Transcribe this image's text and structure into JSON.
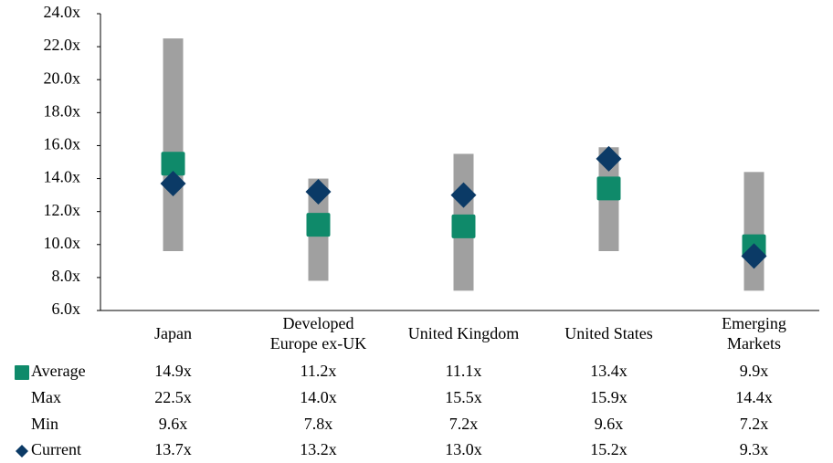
{
  "chart_data": {
    "type": "range",
    "categories": [
      "Japan",
      "Developed\nEurope ex-UK",
      "United Kingdom",
      "United States",
      "Emerging\nMarkets"
    ],
    "series": [
      {
        "name": "Average",
        "color": "#0f8a6a",
        "values": [
          14.9,
          11.2,
          11.1,
          13.4,
          9.9
        ],
        "value_labels": [
          "14.9x",
          "11.2x",
          "11.1x",
          "13.4x",
          "9.9x"
        ]
      },
      {
        "name": "Max",
        "color": "#a0a0a0",
        "values": [
          22.5,
          14.0,
          15.5,
          15.9,
          14.4
        ],
        "value_labels": [
          "22.5x",
          "14.0x",
          "15.5x",
          "15.9x",
          "14.4x"
        ]
      },
      {
        "name": "Min",
        "color": "#a0a0a0",
        "values": [
          9.6,
          7.8,
          7.2,
          9.6,
          7.2
        ],
        "value_labels": [
          "9.6x",
          "7.8x",
          "7.2x",
          "9.6x",
          "7.2x"
        ]
      },
      {
        "name": "Current",
        "color": "#0b3a66",
        "values": [
          13.7,
          13.2,
          13.0,
          15.2,
          9.3
        ],
        "value_labels": [
          "13.7x",
          "13.2x",
          "13.0x",
          "15.2x",
          "9.3x"
        ]
      }
    ],
    "ylim": [
      6,
      24
    ],
    "yticks": [
      {
        "value": 6,
        "label": "6.0x"
      },
      {
        "value": 8,
        "label": "8.0x"
      },
      {
        "value": 10,
        "label": "10.0x"
      },
      {
        "value": 12,
        "label": "12.0x"
      },
      {
        "value": 14,
        "label": "14.0x"
      },
      {
        "value": 16,
        "label": "16.0x"
      },
      {
        "value": 18,
        "label": "18.0x"
      },
      {
        "value": 20,
        "label": "20.0x"
      },
      {
        "value": 22,
        "label": "22.0x"
      },
      {
        "value": 24,
        "label": "24.0x"
      }
    ]
  }
}
